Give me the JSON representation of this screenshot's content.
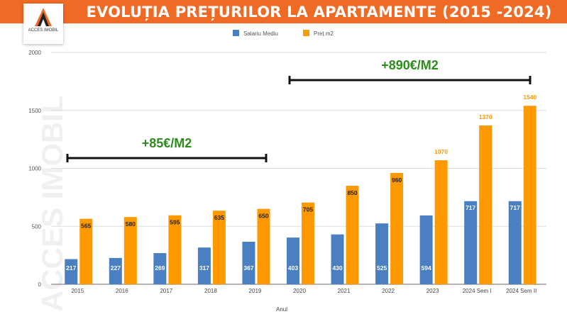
{
  "header": {
    "title": "EVOLUȚIA PREȚURILOR LA APARTAMENTE (2015 -2024)",
    "logo_text": "ACCES IMOBIL",
    "watermark": "ACCES IMOBIL"
  },
  "colors": {
    "header": "#ef6a25",
    "salariu": "#4a7fc1",
    "pret": "#ff9900",
    "annotation": "#2e8b1e"
  },
  "chart_data": {
    "type": "bar",
    "title": "EVOLUȚIA PREȚURILOR LA APARTAMENTE (2015 -2024)",
    "xlabel": "Anul",
    "ylabel": "",
    "ylim": [
      0,
      2000
    ],
    "yticks": [
      "0",
      "500",
      "1000",
      "1500",
      "2000"
    ],
    "grid": true,
    "legend": "top-right",
    "categories": [
      "2015",
      "2016",
      "2017",
      "2018",
      "2019",
      "2020",
      "2021",
      "2022",
      "2023",
      "2024 Sem I",
      "2024 Sem II"
    ],
    "series": [
      {
        "name": "Salariu Mediu",
        "values": [
          217,
          227,
          269,
          317,
          367,
          403,
          430,
          525,
          594,
          717,
          717
        ]
      },
      {
        "name": "Preț m2",
        "values": [
          565,
          580,
          595,
          635,
          650,
          705,
          850,
          960,
          1070,
          1370,
          1540
        ]
      }
    ],
    "annotations": [
      {
        "text": "+85€/M2",
        "from": "2015",
        "to": "2019"
      },
      {
        "text": "+890€/M2",
        "from": "2020",
        "to": "2024 Sem II"
      }
    ]
  }
}
